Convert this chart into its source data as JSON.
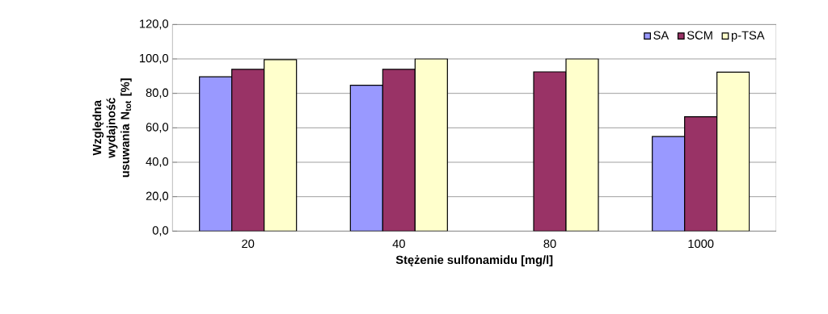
{
  "chart_data": {
    "type": "bar",
    "xlabel": "Stężenie sulfonamidu [mg/l]",
    "ylabel": "Względna wydajność usuwania N$_{tot}$ [%]",
    "categories": [
      "20",
      "40",
      "80",
      "1000"
    ],
    "series": [
      {
        "name": "SA",
        "color": "#9999ff",
        "values": [
          89.6,
          84.7,
          null,
          54.9
        ]
      },
      {
        "name": "SCM",
        "color": "#993366",
        "values": [
          94.0,
          94.0,
          92.5,
          66.4
        ]
      },
      {
        "name": "p-TSA",
        "color": "#ffffcc",
        "values": [
          99.6,
          100.0,
          100.0,
          92.3
        ]
      }
    ],
    "ylim": [
      0,
      120
    ],
    "yticks": [
      {
        "value": 0,
        "label": "0,0"
      },
      {
        "value": 20,
        "label": "20,0"
      },
      {
        "value": 40,
        "label": "40,0"
      },
      {
        "value": 60,
        "label": "60,0"
      },
      {
        "value": 80,
        "label": "80,0"
      },
      {
        "value": 100,
        "label": "100,0"
      },
      {
        "value": 120,
        "label": "120,0"
      }
    ],
    "grid": "y",
    "legend": "top right"
  }
}
